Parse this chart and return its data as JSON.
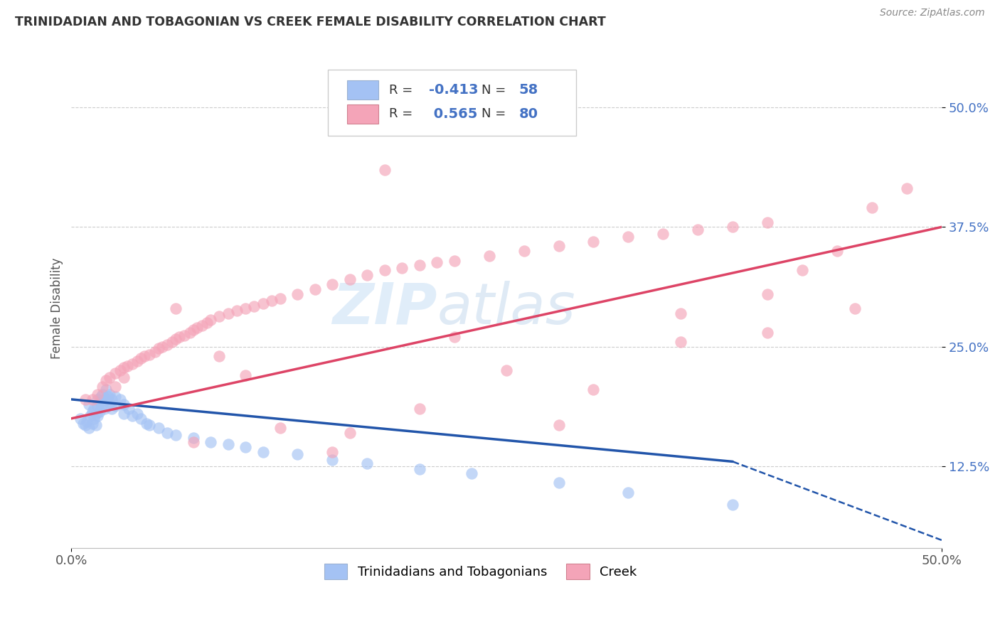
{
  "title": "TRINIDADIAN AND TOBAGONIAN VS CREEK FEMALE DISABILITY CORRELATION CHART",
  "source": "Source: ZipAtlas.com",
  "ylabel": "Female Disability",
  "xlim": [
    0.0,
    0.5
  ],
  "ylim": [
    0.04,
    0.54
  ],
  "yticks": [
    0.125,
    0.25,
    0.375,
    0.5
  ],
  "ytick_labels": [
    "12.5%",
    "25.0%",
    "37.5%",
    "50.0%"
  ],
  "xticks": [
    0.0,
    0.5
  ],
  "xtick_labels": [
    "0.0%",
    "50.0%"
  ],
  "blue_color": "#a4c2f4",
  "pink_color": "#f4a4b8",
  "blue_line_color": "#2255aa",
  "pink_line_color": "#dd4466",
  "blue_r": -0.413,
  "blue_n": 58,
  "pink_r": 0.565,
  "pink_n": 80,
  "legend_blue_label": "Trinidadians and Tobagonians",
  "legend_pink_label": "Creek",
  "watermark_zip": "ZIP",
  "watermark_atlas": "atlas",
  "blue_scatter_x": [
    0.005,
    0.007,
    0.008,
    0.009,
    0.01,
    0.01,
    0.011,
    0.012,
    0.012,
    0.013,
    0.013,
    0.014,
    0.014,
    0.015,
    0.015,
    0.015,
    0.016,
    0.016,
    0.017,
    0.017,
    0.018,
    0.018,
    0.019,
    0.019,
    0.02,
    0.02,
    0.021,
    0.022,
    0.022,
    0.023,
    0.023,
    0.025,
    0.025,
    0.028,
    0.03,
    0.03,
    0.033,
    0.035,
    0.038,
    0.04,
    0.043,
    0.045,
    0.05,
    0.055,
    0.06,
    0.07,
    0.08,
    0.09,
    0.1,
    0.11,
    0.13,
    0.15,
    0.17,
    0.2,
    0.23,
    0.28,
    0.32,
    0.38
  ],
  "blue_scatter_y": [
    0.175,
    0.17,
    0.168,
    0.172,
    0.19,
    0.165,
    0.178,
    0.182,
    0.17,
    0.185,
    0.175,
    0.18,
    0.168,
    0.195,
    0.188,
    0.178,
    0.192,
    0.182,
    0.198,
    0.188,
    0.2,
    0.19,
    0.195,
    0.185,
    0.205,
    0.195,
    0.198,
    0.2,
    0.192,
    0.195,
    0.185,
    0.198,
    0.188,
    0.195,
    0.19,
    0.18,
    0.185,
    0.178,
    0.18,
    0.175,
    0.17,
    0.168,
    0.165,
    0.16,
    0.158,
    0.155,
    0.15,
    0.148,
    0.145,
    0.14,
    0.138,
    0.132,
    0.128,
    0.122,
    0.118,
    0.108,
    0.098,
    0.085
  ],
  "pink_scatter_x": [
    0.008,
    0.012,
    0.015,
    0.018,
    0.02,
    0.022,
    0.025,
    0.025,
    0.028,
    0.03,
    0.03,
    0.032,
    0.035,
    0.038,
    0.04,
    0.042,
    0.045,
    0.048,
    0.05,
    0.052,
    0.055,
    0.058,
    0.06,
    0.062,
    0.065,
    0.068,
    0.07,
    0.072,
    0.075,
    0.078,
    0.08,
    0.085,
    0.09,
    0.095,
    0.1,
    0.105,
    0.11,
    0.115,
    0.12,
    0.13,
    0.14,
    0.15,
    0.16,
    0.17,
    0.18,
    0.19,
    0.2,
    0.21,
    0.22,
    0.24,
    0.26,
    0.28,
    0.3,
    0.32,
    0.34,
    0.36,
    0.38,
    0.4,
    0.42,
    0.44,
    0.46,
    0.48,
    0.07,
    0.12,
    0.16,
    0.2,
    0.25,
    0.3,
    0.35,
    0.4,
    0.18,
    0.22,
    0.28,
    0.35,
    0.1,
    0.15,
    0.06,
    0.085,
    0.4,
    0.45
  ],
  "pink_scatter_y": [
    0.195,
    0.195,
    0.2,
    0.208,
    0.215,
    0.218,
    0.222,
    0.208,
    0.225,
    0.228,
    0.218,
    0.23,
    0.232,
    0.235,
    0.238,
    0.24,
    0.242,
    0.245,
    0.248,
    0.25,
    0.252,
    0.255,
    0.258,
    0.26,
    0.262,
    0.265,
    0.268,
    0.27,
    0.272,
    0.275,
    0.278,
    0.282,
    0.285,
    0.288,
    0.29,
    0.292,
    0.295,
    0.298,
    0.3,
    0.305,
    0.31,
    0.315,
    0.32,
    0.325,
    0.33,
    0.332,
    0.335,
    0.338,
    0.34,
    0.345,
    0.35,
    0.355,
    0.36,
    0.365,
    0.368,
    0.372,
    0.375,
    0.38,
    0.33,
    0.35,
    0.395,
    0.415,
    0.15,
    0.165,
    0.16,
    0.185,
    0.225,
    0.205,
    0.255,
    0.305,
    0.435,
    0.26,
    0.168,
    0.285,
    0.22,
    0.14,
    0.29,
    0.24,
    0.265,
    0.29
  ]
}
